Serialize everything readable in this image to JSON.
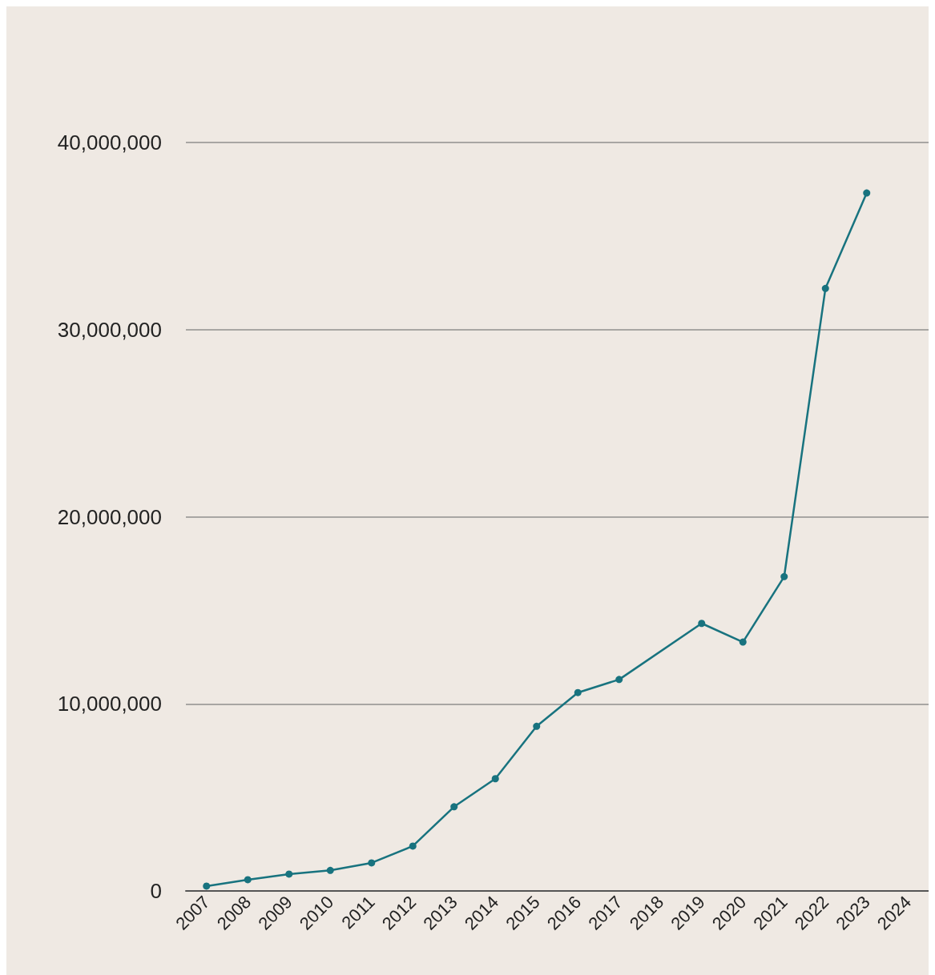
{
  "chart_data": {
    "type": "line",
    "categories": [
      "2007",
      "2008",
      "2009",
      "2010",
      "2011",
      "2012",
      "2013",
      "2014",
      "2015",
      "2016",
      "2017",
      "2018",
      "2019",
      "2020",
      "2021",
      "2022",
      "2023",
      "2024"
    ],
    "series": [
      {
        "color": "#18737f",
        "values": [
          260000,
          600000,
          900000,
          1100000,
          1500000,
          2400000,
          4500000,
          6000000,
          8800000,
          10600000,
          11300000,
          null,
          14300000,
          13300000,
          16800000,
          32200000,
          37300000,
          null
        ]
      }
    ],
    "ylim": [
      0,
      40000000
    ],
    "yticks": [
      0,
      {
        "value": 10000000,
        "label": "10,000,000"
      },
      {
        "value": 20000000,
        "label": "20,000,000"
      },
      {
        "value": 30000000,
        "label": "30,000,000"
      },
      {
        "value": 40000000,
        "label": "40,000,000"
      }
    ],
    "grid": "y",
    "marker": "circle",
    "line_style": "solid"
  }
}
